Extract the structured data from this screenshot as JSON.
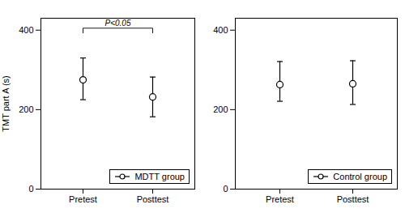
{
  "chart_data": [
    {
      "type": "errorbar",
      "categories": [
        "Pretest",
        "Posttest"
      ],
      "series": [
        {
          "name": "MDTT group",
          "color": "#000000",
          "marker": "open_circle",
          "values": [
            275,
            232
          ],
          "err_up": [
            55,
            50
          ],
          "err_dn": [
            50,
            50
          ]
        }
      ],
      "ylabel": "TMT part A (s)",
      "ylim": [
        0,
        430
      ],
      "yticks": [
        0,
        200,
        400
      ],
      "grid": false,
      "legend": "lower right",
      "annotations": [
        {
          "text": "P<0.05",
          "x": [
            "Pretest",
            "Posttest"
          ],
          "y": 405,
          "y_end": 393
        }
      ]
    },
    {
      "type": "errorbar",
      "categories": [
        "Pretest",
        "Posttest"
      ],
      "series": [
        {
          "name": "Control group",
          "color": "#000000",
          "marker": "open_circle",
          "values": [
            263,
            265
          ],
          "err_up": [
            58,
            58
          ],
          "err_dn": [
            42,
            52
          ]
        }
      ],
      "ylim": [
        0,
        430
      ],
      "yticks": [
        0,
        200,
        400
      ],
      "grid": false,
      "legend": "lower right"
    }
  ]
}
